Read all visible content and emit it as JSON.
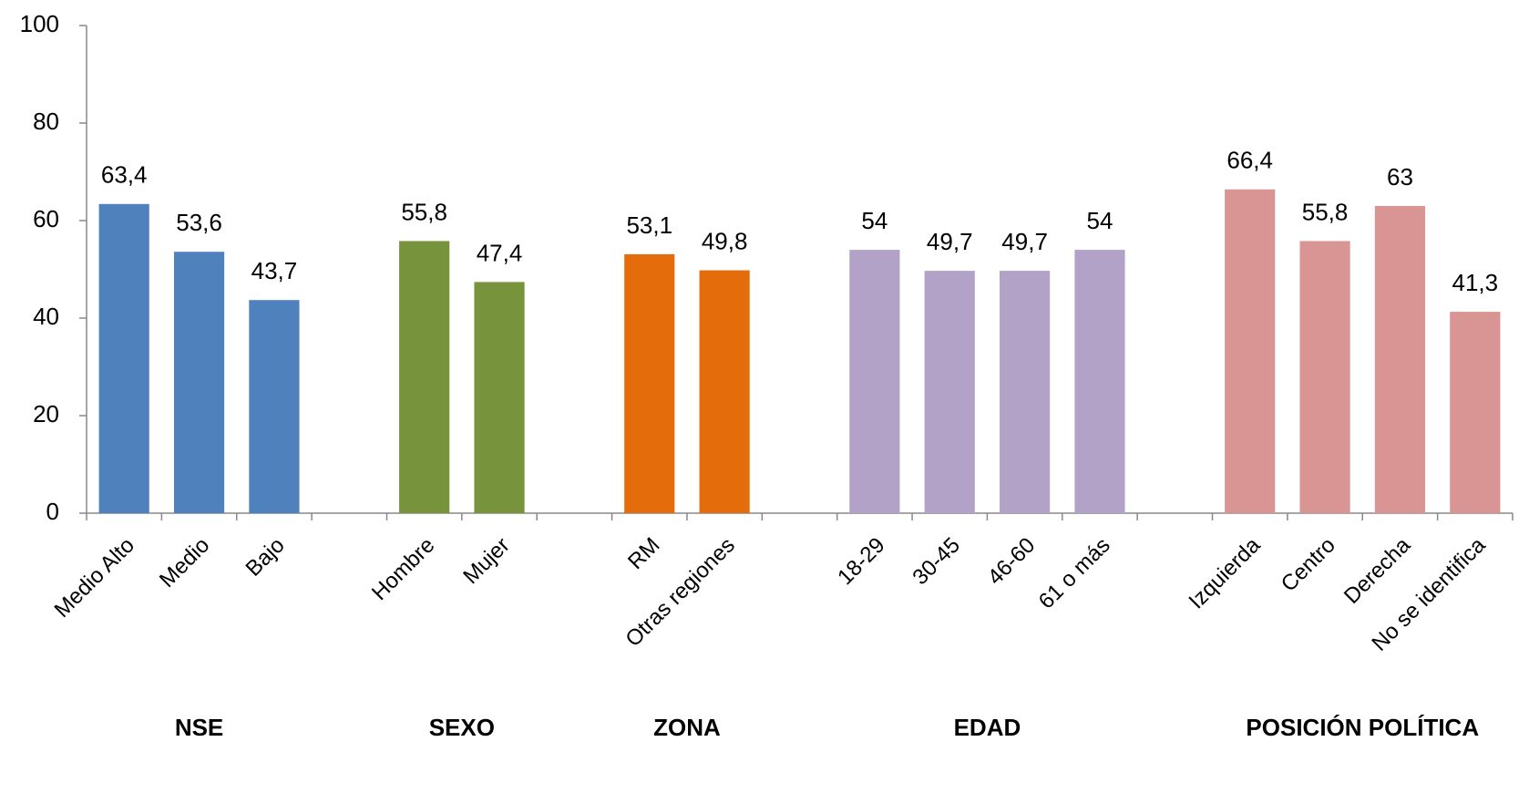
{
  "chart_data": {
    "type": "bar",
    "ylim": [
      0,
      100
    ],
    "yticks": [
      0,
      20,
      40,
      60,
      80,
      100
    ],
    "groups": [
      {
        "name": "NSE",
        "color": "#4f81bd",
        "categories": [
          "Medio Alto",
          "Medio",
          "Bajo"
        ],
        "values": [
          63.4,
          53.6,
          43.7
        ],
        "value_labels": [
          "63,4",
          "53,6",
          "43,7"
        ]
      },
      {
        "name": "SEXO",
        "color": "#77933c",
        "categories": [
          "Hombre",
          "Mujer"
        ],
        "values": [
          55.8,
          47.4
        ],
        "value_labels": [
          "55,8",
          "47,4"
        ]
      },
      {
        "name": "ZONA",
        "color": "#e46c0a",
        "categories": [
          "RM",
          "Otras regiones"
        ],
        "values": [
          53.1,
          49.8
        ],
        "value_labels": [
          "53,1",
          "49,8"
        ]
      },
      {
        "name": "EDAD",
        "color": "#b3a2c7",
        "categories": [
          "18-29",
          "30-45",
          "46-60",
          "61 o más"
        ],
        "values": [
          54,
          49.7,
          49.7,
          54
        ],
        "value_labels": [
          "54",
          "49,7",
          "49,7",
          "54"
        ]
      },
      {
        "name": "POSICIÓN POLÍTICA",
        "color": "#d99594",
        "categories": [
          "Izquierda",
          "Centro",
          "Derecha",
          "No se identifica"
        ],
        "values": [
          66.4,
          55.8,
          63,
          41.3
        ],
        "value_labels": [
          "66,4",
          "55,8",
          "63",
          "41,3"
        ]
      }
    ]
  }
}
